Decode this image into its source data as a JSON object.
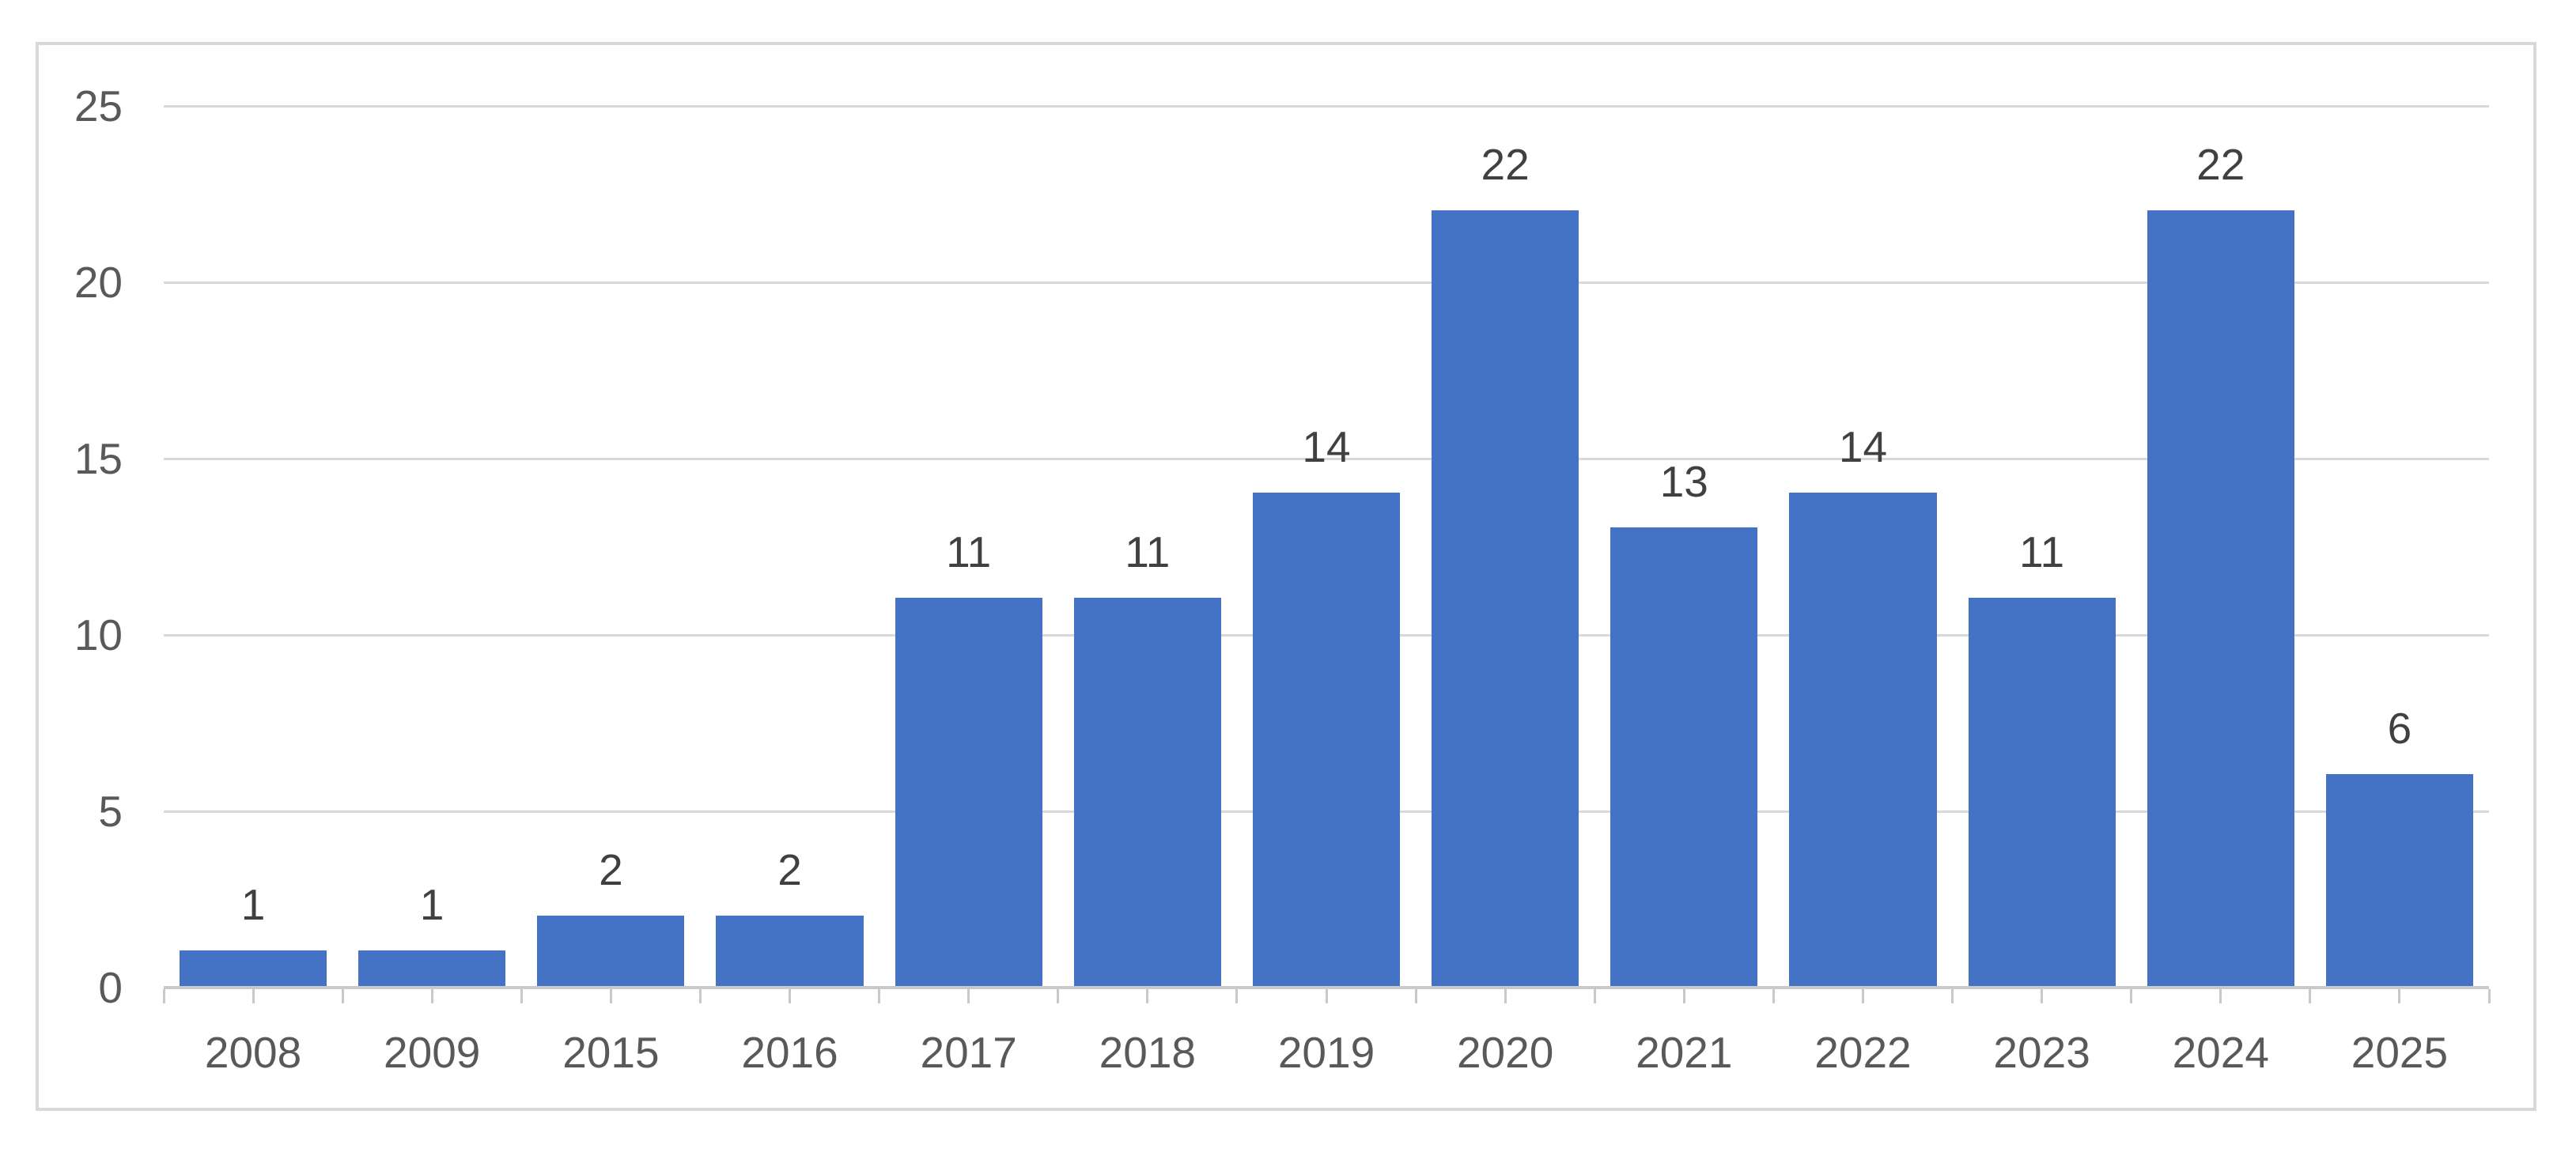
{
  "chart_data": {
    "type": "bar",
    "categories": [
      "2008",
      "2009",
      "2015",
      "2016",
      "2017",
      "2018",
      "2019",
      "2020",
      "2021",
      "2022",
      "2023",
      "2024",
      "2025"
    ],
    "values": [
      1,
      1,
      2,
      2,
      11,
      11,
      14,
      22,
      13,
      14,
      11,
      22,
      6
    ],
    "title": "",
    "xlabel": "",
    "ylabel": "",
    "ylim": [
      0,
      25
    ],
    "yticks": [
      0,
      5,
      10,
      15,
      20,
      25
    ],
    "grid": "horizontal",
    "legend": "none",
    "data_labels_shown": true
  },
  "colors": {
    "bar": "#4472C4",
    "gridline": "#D9D9D9",
    "axis_line": "#C9C9C9",
    "tick": "#C9C9C9",
    "frame_border": "#D9D9D9",
    "axis_text": "#595959",
    "value_text": "#404040",
    "background": "#FFFFFF"
  }
}
